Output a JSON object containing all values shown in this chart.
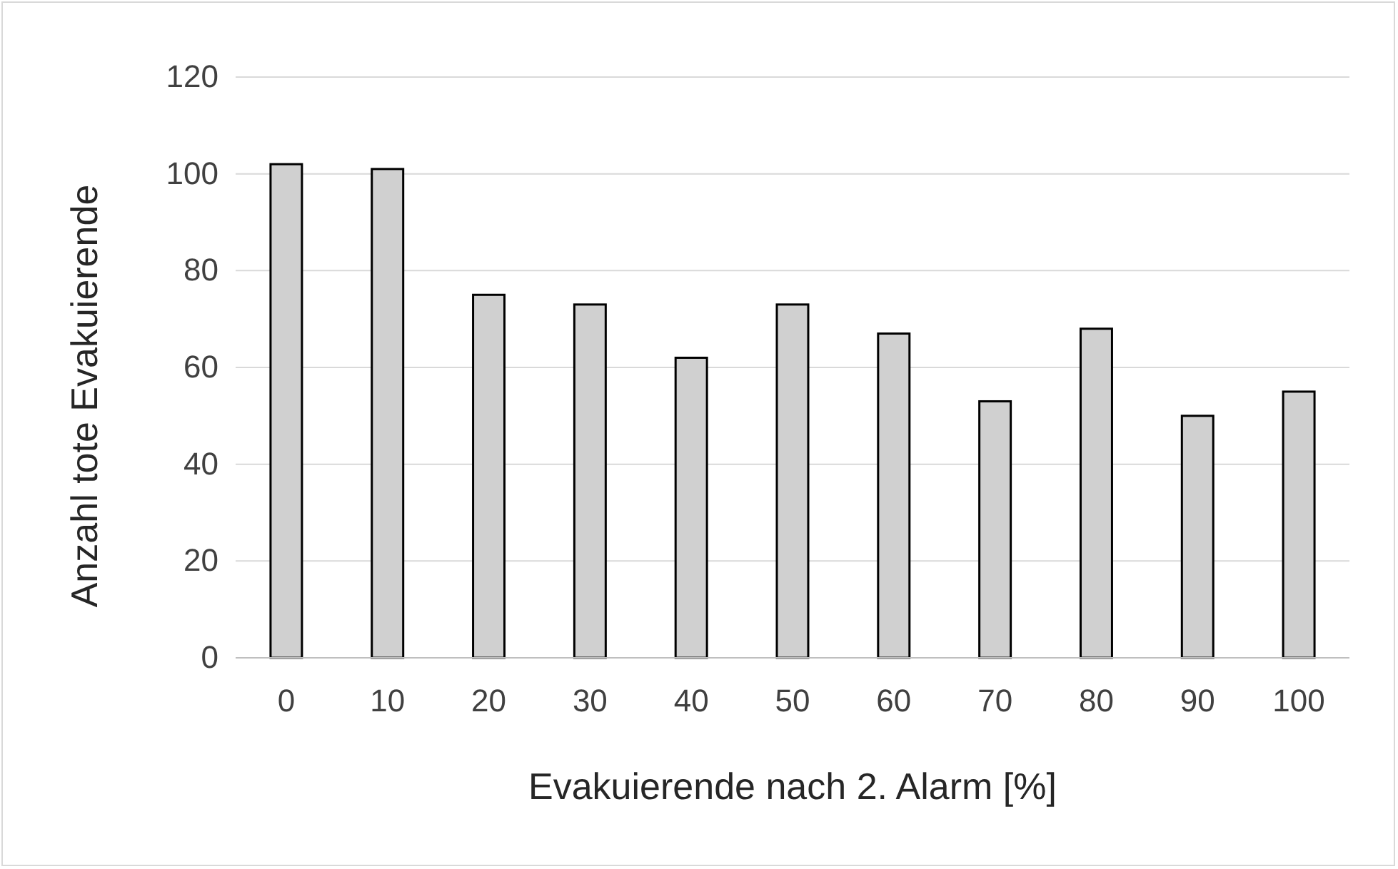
{
  "chart_data": {
    "type": "bar",
    "xlabel": "Evakuierende nach 2. Alarm [%]",
    "ylabel": "Anzahl tote Evakuierende",
    "categories": [
      "0",
      "10",
      "20",
      "30",
      "40",
      "50",
      "60",
      "70",
      "80",
      "90",
      "100"
    ],
    "values": [
      102,
      101,
      75,
      73,
      62,
      73,
      67,
      53,
      68,
      50,
      55
    ],
    "color": "#d0d0d0",
    "ylim": [
      0,
      120
    ],
    "yticks": [
      0,
      20,
      40,
      60,
      80,
      100,
      120
    ],
    "grid": "y"
  }
}
